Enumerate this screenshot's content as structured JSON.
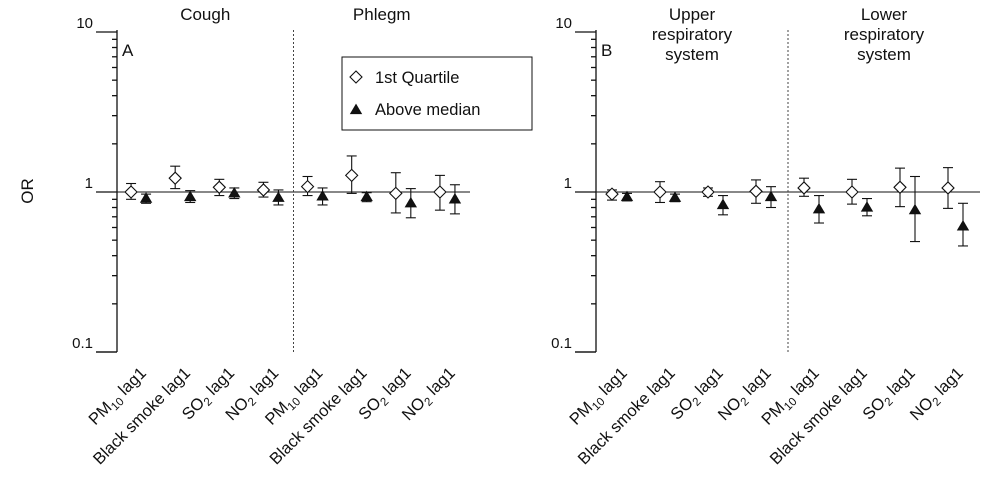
{
  "ylabel": "OR",
  "legend": [
    {
      "label": "1st Quartile",
      "marker": "diamond-open"
    },
    {
      "label": "Above median",
      "marker": "triangle-filled"
    }
  ],
  "pollutant_labels": [
    {
      "base": "PM",
      "sub": "10",
      "rest": " lag1"
    },
    {
      "base": "Black smoke lag1",
      "sub": "",
      "rest": ""
    },
    {
      "base": "SO",
      "sub": "2",
      "rest": " lag1"
    },
    {
      "base": "NO",
      "sub": "2",
      "rest": " lag1"
    }
  ],
  "chart_data": [
    {
      "type": "scatter",
      "panel_label": "A",
      "scale": "log",
      "ylim": [
        0.1,
        10
      ],
      "yticks": [
        "0.1",
        "1",
        "10"
      ],
      "reference_line": 1,
      "groups": [
        {
          "title": [
            "Cough"
          ],
          "points": [
            {
              "quartile": {
                "or": 1.0,
                "lo": 0.9,
                "hi": 1.13
              },
              "median": {
                "or": 0.91,
                "lo": 0.85,
                "hi": 0.97
              }
            },
            {
              "quartile": {
                "or": 1.22,
                "lo": 1.05,
                "hi": 1.45
              },
              "median": {
                "or": 0.93,
                "lo": 0.86,
                "hi": 1.02
              }
            },
            {
              "quartile": {
                "or": 1.07,
                "lo": 0.95,
                "hi": 1.2
              },
              "median": {
                "or": 0.98,
                "lo": 0.91,
                "hi": 1.06
              }
            },
            {
              "quartile": {
                "or": 1.03,
                "lo": 0.93,
                "hi": 1.15
              },
              "median": {
                "or": 0.92,
                "lo": 0.83,
                "hi": 1.03
              }
            }
          ]
        },
        {
          "title": [
            "Phlegm"
          ],
          "points": [
            {
              "quartile": {
                "or": 1.08,
                "lo": 0.95,
                "hi": 1.25
              },
              "median": {
                "or": 0.94,
                "lo": 0.83,
                "hi": 1.06
              }
            },
            {
              "quartile": {
                "or": 1.27,
                "lo": 0.98,
                "hi": 1.68
              },
              "median": {
                "or": 0.93,
                "lo": 0.87,
                "hi": 0.99
              }
            },
            {
              "quartile": {
                "or": 0.98,
                "lo": 0.74,
                "hi": 1.32
              },
              "median": {
                "or": 0.85,
                "lo": 0.69,
                "hi": 1.05
              }
            },
            {
              "quartile": {
                "or": 1.0,
                "lo": 0.77,
                "hi": 1.27
              },
              "median": {
                "or": 0.9,
                "lo": 0.73,
                "hi": 1.11
              }
            }
          ]
        }
      ]
    },
    {
      "type": "scatter",
      "panel_label": "B",
      "scale": "log",
      "ylim": [
        0.1,
        10
      ],
      "yticks": [
        "0.1",
        "1",
        "10"
      ],
      "reference_line": 1,
      "groups": [
        {
          "title": [
            "Upper",
            "respiratory",
            "system"
          ],
          "points": [
            {
              "quartile": {
                "or": 0.97,
                "lo": 0.89,
                "hi": 1.03
              },
              "median": {
                "or": 0.93,
                "lo": 0.88,
                "hi": 0.98
              }
            },
            {
              "quartile": {
                "or": 1.0,
                "lo": 0.86,
                "hi": 1.16
              },
              "median": {
                "or": 0.92,
                "lo": 0.87,
                "hi": 0.97
              }
            },
            {
              "quartile": {
                "or": 1.0,
                "lo": 0.94,
                "hi": 1.06
              },
              "median": {
                "or": 0.83,
                "lo": 0.72,
                "hi": 0.95
              }
            },
            {
              "quartile": {
                "or": 1.01,
                "lo": 0.85,
                "hi": 1.19
              },
              "median": {
                "or": 0.93,
                "lo": 0.8,
                "hi": 1.08
              }
            }
          ]
        },
        {
          "title": [
            "Lower",
            "respiratory",
            "system"
          ],
          "points": [
            {
              "quartile": {
                "or": 1.06,
                "lo": 0.94,
                "hi": 1.22
              },
              "median": {
                "or": 0.78,
                "lo": 0.64,
                "hi": 0.95
              }
            },
            {
              "quartile": {
                "or": 1.0,
                "lo": 0.84,
                "hi": 1.2
              },
              "median": {
                "or": 0.8,
                "lo": 0.71,
                "hi": 0.91
              }
            },
            {
              "quartile": {
                "or": 1.07,
                "lo": 0.81,
                "hi": 1.41
              },
              "median": {
                "or": 0.77,
                "lo": 0.49,
                "hi": 1.25
              }
            },
            {
              "quartile": {
                "or": 1.06,
                "lo": 0.79,
                "hi": 1.42
              },
              "median": {
                "or": 0.61,
                "lo": 0.46,
                "hi": 0.85
              }
            }
          ]
        }
      ]
    }
  ]
}
